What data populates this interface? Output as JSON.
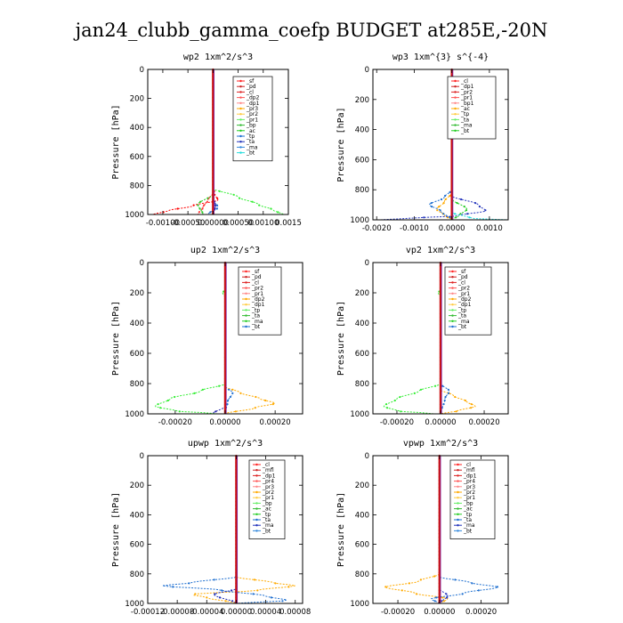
{
  "title": "jan24_clubb_gamma_coefp  BUDGET at285E,-20N",
  "chart_data": [
    {
      "type": "line",
      "title": "wp2  1xm^2/s^3",
      "ylabel": "Pressure [hPa]",
      "xlim": [
        -0.0013,
        0.0015
      ],
      "ylim": [
        1000,
        0
      ],
      "xticks": [
        -0.001,
        -0.0005,
        0.0,
        0.0005,
        0.001,
        0.0015
      ],
      "xtick_labels": [
        "-0.00100",
        "-0.00050",
        "0.00000",
        "0.00050",
        "0.00100",
        "0.0015"
      ],
      "yticks": [
        0,
        200,
        400,
        600,
        800,
        1000
      ],
      "legend": [
        "_sf",
        "_pd",
        "_cl",
        "_dp2",
        "_dp1",
        "_pr3",
        "_pr2",
        "_pr1",
        "_bp",
        "_ac",
        "_tp",
        "_ta",
        "_ma",
        "_bt"
      ],
      "series": [
        {
          "name": "_cl",
          "color": "#ff0000",
          "profile": [
            [
              0,
              0
            ],
            [
              800,
              0
            ],
            [
              860,
              3e-05
            ],
            [
              900,
              0.0001
            ],
            [
              940,
              -0.0004
            ],
            [
              975,
              -0.0009
            ],
            [
              1000,
              -0.0012
            ]
          ]
        },
        {
          "name": "_dp1",
          "color": "#ff3030",
          "profile": [
            [
              0,
              0
            ],
            [
              850,
              0
            ],
            [
              900,
              -0.0001
            ],
            [
              950,
              -0.0002
            ],
            [
              1000,
              -0.0003
            ]
          ]
        },
        {
          "name": "_pr1",
          "color": "#33ee33",
          "profile": [
            [
              0,
              0
            ],
            [
              820,
              0
            ],
            [
              880,
              0.0005
            ],
            [
              930,
              0.0009
            ],
            [
              970,
              0.0012
            ],
            [
              1000,
              0.0014
            ]
          ]
        },
        {
          "name": "_bp",
          "color": "#22cc22",
          "profile": [
            [
              0,
              0
            ],
            [
              860,
              0
            ],
            [
              930,
              -0.0003
            ],
            [
              1000,
              -0.0002
            ]
          ]
        },
        {
          "name": "_tp",
          "color": "#1e6fd0",
          "profile": [
            [
              0,
              0
            ],
            [
              900,
              0
            ],
            [
              950,
              0.0001
            ],
            [
              1000,
              -0.0001
            ]
          ]
        },
        {
          "name": "_ma",
          "color": "#2222aa",
          "profile": [
            [
              0,
              0
            ],
            [
              880,
              0
            ],
            [
              940,
              5e-05
            ],
            [
              1000,
              0
            ]
          ]
        },
        {
          "name": "_bt",
          "color": "#8822cc",
          "profile": [
            [
              0,
              0
            ],
            [
              1000,
              0
            ]
          ]
        }
      ]
    },
    {
      "type": "line",
      "title": "wp3  1xm^{3} s^{-4}",
      "ylabel": "Pressure [hPa]",
      "xlim": [
        -0.0021,
        0.0015
      ],
      "ylim": [
        1000,
        0
      ],
      "xticks": [
        -0.002,
        -0.001,
        0.0,
        0.001
      ],
      "xtick_labels": [
        "-0.0020",
        "-0.0010",
        "0.0000",
        "0.0010"
      ],
      "yticks": [
        0,
        200,
        400,
        600,
        800,
        1000
      ],
      "legend": [
        "_cl",
        "_dp1",
        "_pr2",
        "_pr1",
        "_bp1",
        "_ac",
        "_tp",
        "_ta",
        "_ma",
        "_bt"
      ],
      "series": [
        {
          "name": "_pr1",
          "color": "#ffaa00",
          "profile": [
            [
              0,
              0
            ],
            [
              820,
              0
            ],
            [
              880,
              -0.0002
            ],
            [
              930,
              -0.0004
            ],
            [
              970,
              -0.0002
            ],
            [
              1000,
              0
            ]
          ]
        },
        {
          "name": "_ac",
          "color": "#22cc22",
          "profile": [
            [
              0,
              0
            ],
            [
              860,
              0
            ],
            [
              930,
              0.0004
            ],
            [
              970,
              0.0002
            ],
            [
              1000,
              0
            ]
          ]
        },
        {
          "name": "_tp",
          "color": "#1e6fd0",
          "profile": [
            [
              0,
              0
            ],
            [
              800,
              0
            ],
            [
              850,
              -0.0002
            ],
            [
              900,
              -0.0006
            ],
            [
              940,
              -0.0003
            ],
            [
              1000,
              0
            ]
          ]
        },
        {
          "name": "_ta",
          "color": "#2233bb",
          "profile": [
            [
              0,
              0
            ],
            [
              840,
              0
            ],
            [
              900,
              0.0007
            ],
            [
              940,
              0.0009
            ],
            [
              975,
              0.0001
            ],
            [
              990,
              -0.0012
            ],
            [
              1000,
              -0.0019
            ]
          ]
        },
        {
          "name": "_bt",
          "color": "#22dddd",
          "profile": [
            [
              0,
              0
            ],
            [
              950,
              0
            ],
            [
              990,
              0.0005
            ],
            [
              1000,
              0.0015
            ]
          ]
        },
        {
          "name": "_cl",
          "color": "#cc2222",
          "profile": [
            [
              0,
              0
            ],
            [
              1000,
              0
            ]
          ]
        }
      ]
    },
    {
      "type": "line",
      "title": "up2  1xm^2/s^3",
      "ylabel": "Pressure [hPa]",
      "xlim": [
        -0.00031,
        0.00031
      ],
      "ylim": [
        1000,
        0
      ],
      "xticks": [
        -0.0002,
        0.0,
        0.0002
      ],
      "xtick_labels": [
        "-0.00020",
        "0.00000",
        "0.00020"
      ],
      "yticks": [
        0,
        200,
        400,
        600,
        800,
        1000
      ],
      "legend": [
        "_sf",
        "_pd",
        "_cl",
        "_pr2",
        "_pr1",
        "_dp2",
        "_dp1",
        "_tp",
        "_ta",
        "_ma",
        "_bt"
      ],
      "series": [
        {
          "name": "_pr2",
          "color": "#ffaa00",
          "profile": [
            [
              0,
              0
            ],
            [
              820,
              0
            ],
            [
              860,
              6e-05
            ],
            [
              900,
              0.00014
            ],
            [
              930,
              0.0002
            ],
            [
              960,
              0.00012
            ],
            [
              1000,
              0
            ]
          ]
        },
        {
          "name": "_dp1",
          "color": "#33ee33",
          "profile": [
            [
              0,
              0
            ],
            [
              180,
              0
            ],
            [
              200,
              -1e-05
            ],
            [
              230,
              0
            ],
            [
              800,
              0
            ],
            [
              850,
              -0.0001
            ],
            [
              900,
              -0.00022
            ],
            [
              950,
              -0.00028
            ],
            [
              980,
              -0.0002
            ],
            [
              1000,
              -3e-05
            ]
          ]
        },
        {
          "name": "_tp",
          "color": "#1e6fd0",
          "profile": [
            [
              0,
              0
            ],
            [
              820,
              0
            ],
            [
              860,
              3e-05
            ],
            [
              920,
              1e-05
            ],
            [
              1000,
              0
            ]
          ]
        },
        {
          "name": "_ma",
          "color": "#2222aa",
          "profile": [
            [
              0,
              0
            ],
            [
              950,
              0
            ],
            [
              1000,
              -5e-05
            ]
          ]
        },
        {
          "name": "_cl",
          "color": "#cc2222",
          "profile": [
            [
              0,
              0
            ],
            [
              1000,
              0
            ]
          ]
        }
      ]
    },
    {
      "type": "line",
      "title": "vp2  1xm^2/s^3",
      "ylabel": "Pressure [hPa]",
      "xlim": [
        -0.00031,
        0.00031
      ],
      "ylim": [
        1000,
        0
      ],
      "xticks": [
        -0.0002,
        0.0,
        0.0002
      ],
      "xtick_labels": [
        "-0.00020",
        "0.00000",
        "0.00020"
      ],
      "yticks": [
        0,
        200,
        400,
        600,
        800,
        1000
      ],
      "legend": [
        "_sf",
        "_pd",
        "_cl",
        "_pr2",
        "_pr1",
        "_dp2",
        "_dp1",
        "_tp",
        "_ta",
        "_ma",
        "_bt"
      ],
      "series": [
        {
          "name": "_pr2",
          "color": "#ffaa00",
          "profile": [
            [
              0,
              0
            ],
            [
              840,
              0
            ],
            [
              880,
              6e-05
            ],
            [
              920,
              0.00012
            ],
            [
              950,
              0.00016
            ],
            [
              980,
              8e-05
            ],
            [
              1000,
              0
            ]
          ]
        },
        {
          "name": "_dp1",
          "color": "#33ee33",
          "profile": [
            [
              0,
              0
            ],
            [
              180,
              0
            ],
            [
              200,
              -1e-05
            ],
            [
              230,
              0
            ],
            [
              800,
              0
            ],
            [
              850,
              -0.0001
            ],
            [
              900,
              -0.0002
            ],
            [
              950,
              -0.00026
            ],
            [
              980,
              -0.0002
            ],
            [
              1000,
              -3e-05
            ]
          ]
        },
        {
          "name": "_tp",
          "color": "#1e6fd0",
          "profile": [
            [
              0,
              0
            ],
            [
              800,
              0
            ],
            [
              850,
              4e-05
            ],
            [
              900,
              2e-05
            ],
            [
              1000,
              0
            ]
          ]
        },
        {
          "name": "_cl",
          "color": "#cc2222",
          "profile": [
            [
              0,
              0
            ],
            [
              1000,
              0
            ]
          ]
        }
      ]
    },
    {
      "type": "line",
      "title": "upwp  1xm^2/s^3",
      "ylabel": "Pressure [hPa]",
      "xlim": [
        -0.00012,
        9e-05
      ],
      "ylim": [
        1000,
        0
      ],
      "xticks": [
        -0.00012,
        -8e-05,
        -4e-05,
        0.0,
        4e-05,
        8e-05
      ],
      "xtick_labels": [
        "-0.00012",
        "-0.00008",
        "-0.00004",
        "0.00000",
        "0.00004",
        "0.00008"
      ],
      "yticks": [
        0,
        200,
        400,
        600,
        800,
        1000
      ],
      "legend": [
        "_cl",
        "_mfl",
        "_dp1",
        "_pr4",
        "_pr3",
        "_pr2",
        "_pr1",
        "_bp",
        "_ac",
        "_tp",
        "_ta",
        "_ma",
        "_bt"
      ],
      "series": [
        {
          "name": "_pr2",
          "color": "#ffaa00",
          "profile": [
            [
              0,
              0
            ],
            [
              820,
              0
            ],
            [
              860,
              5e-05
            ],
            [
              880,
              8e-05
            ],
            [
              910,
              3e-05
            ],
            [
              940,
              -6e-05
            ],
            [
              960,
              -4e-05
            ],
            [
              1000,
              0
            ]
          ]
        },
        {
          "name": "_tp",
          "color": "#1e6fd0",
          "profile": [
            [
              0,
              0
            ],
            [
              820,
              0
            ],
            [
              860,
              -6e-05
            ],
            [
              880,
              -0.0001
            ],
            [
              910,
              -2e-05
            ],
            [
              950,
              4e-05
            ],
            [
              980,
              7e-05
            ],
            [
              1000,
              0
            ]
          ]
        },
        {
          "name": "_ta",
          "color": "#2233bb",
          "profile": [
            [
              0,
              0
            ],
            [
              900,
              0
            ],
            [
              940,
              -3e-05
            ],
            [
              1000,
              0
            ]
          ]
        },
        {
          "name": "_cl",
          "color": "#cc2222",
          "profile": [
            [
              0,
              0
            ],
            [
              1000,
              0
            ]
          ]
        }
      ]
    },
    {
      "type": "line",
      "title": "vpwp  1xm^2/s^3",
      "ylabel": "Pressure [hPa]",
      "xlim": [
        -0.00032,
        0.00033
      ],
      "ylim": [
        1000,
        0
      ],
      "xticks": [
        -0.0002,
        0.0,
        0.0002
      ],
      "xtick_labels": [
        "-0.00020",
        "0.00000",
        "0.00020"
      ],
      "yticks": [
        0,
        200,
        400,
        600,
        800,
        1000
      ],
      "legend": [
        "_cl",
        "_mfl",
        "_dp1",
        "_pr4",
        "_pr3",
        "_pr2",
        "_pr1",
        "_bp",
        "_ac",
        "_tp",
        "_ta",
        "_ma",
        "_bt"
      ],
      "series": [
        {
          "name": "_pr2",
          "color": "#ffaa00",
          "profile": [
            [
              0,
              0
            ],
            [
              800,
              0
            ],
            [
              850,
              -0.0001
            ],
            [
              890,
              -0.00026
            ],
            [
              930,
              -0.00012
            ],
            [
              970,
              4e-05
            ],
            [
              1000,
              0
            ]
          ]
        },
        {
          "name": "_tp",
          "color": "#1e6fd0",
          "profile": [
            [
              0,
              0
            ],
            [
              820,
              0
            ],
            [
              860,
              0.00015
            ],
            [
              890,
              0.00028
            ],
            [
              930,
              0.00012
            ],
            [
              970,
              -4e-05
            ],
            [
              1000,
              0
            ]
          ]
        },
        {
          "name": "_ta",
          "color": "#2233bb",
          "profile": [
            [
              0,
              0
            ],
            [
              900,
              0
            ],
            [
              950,
              4e-05
            ],
            [
              1000,
              0
            ]
          ]
        },
        {
          "name": "_cl",
          "color": "#cc2222",
          "profile": [
            [
              0,
              0
            ],
            [
              1000,
              0
            ]
          ]
        }
      ]
    }
  ]
}
